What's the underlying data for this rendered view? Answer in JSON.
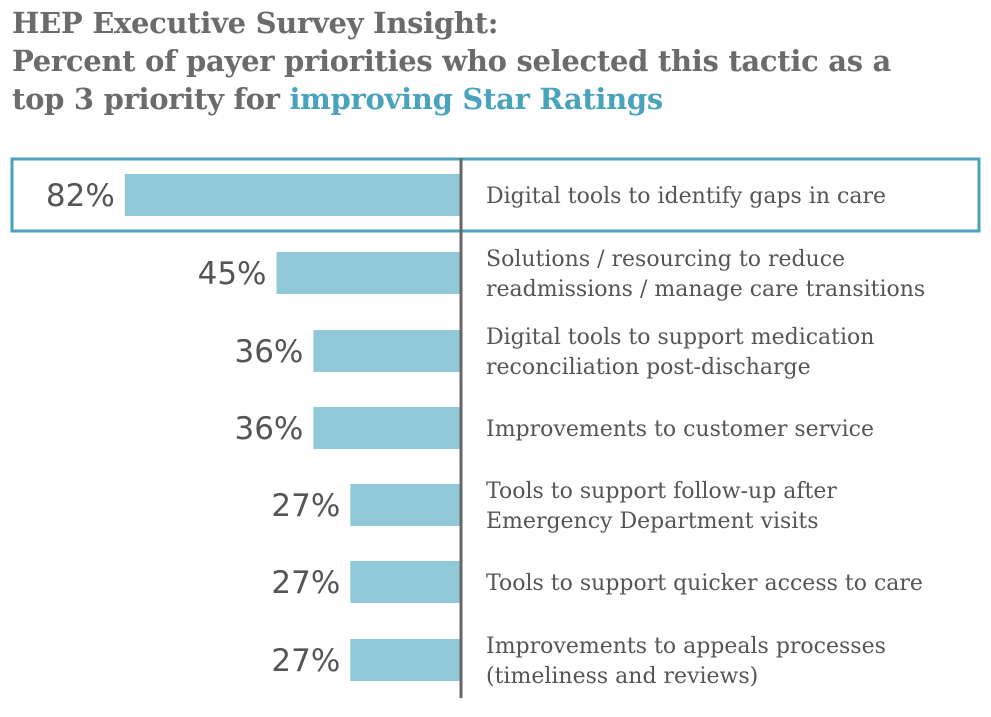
{
  "title": {
    "line1": "HEP Executive Survey Insight:",
    "line2": "Percent of payer priorities who selected this tactic as a",
    "line3_prefix": "top 3 priority for ",
    "line3_highlight": "improving Star Ratings"
  },
  "chart_data": {
    "type": "bar",
    "orientation": "horizontal",
    "categories": [
      [
        "Digital tools to identify gaps in care"
      ],
      [
        "Solutions / resourcing to reduce",
        "readmissions / manage care transitions"
      ],
      [
        "Digital tools to support medication",
        "reconciliation post-discharge"
      ],
      [
        "Improvements to customer service"
      ],
      [
        "Tools to support follow-up after",
        "Emergency Department visits"
      ],
      [
        "Tools to support quicker access to care"
      ],
      [
        "Improvements to appeals processes",
        "(timeliness and reviews)"
      ]
    ],
    "values": [
      82,
      45,
      36,
      36,
      27,
      27,
      27
    ],
    "value_labels": [
      "82%",
      "45%",
      "36%",
      "36%",
      "27%",
      "27%",
      "27%"
    ],
    "xlim": [
      0,
      100
    ],
    "highlighted_index": 0,
    "colors": {
      "bar": "#92c9d8",
      "highlight_border": "#4aa3bd",
      "axis": "#666666"
    }
  }
}
